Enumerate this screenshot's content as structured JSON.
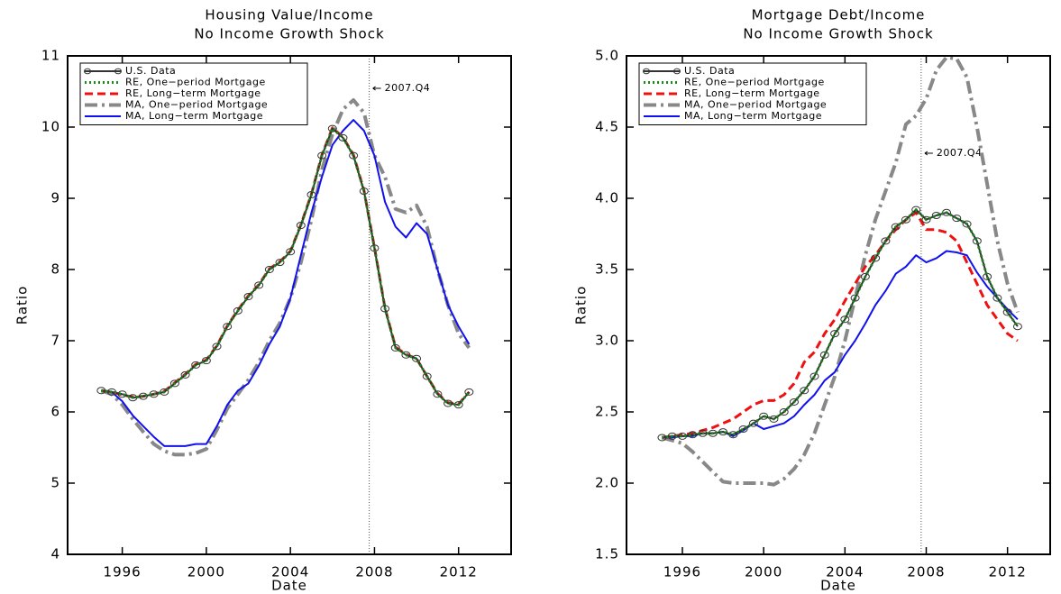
{
  "chart_data": [
    {
      "type": "line",
      "title": "Housing Value/Income",
      "subtitle": "No Income Growth Shock",
      "x_label": "Date",
      "y_label": "Ratio",
      "x": [
        1995,
        1995.5,
        1996,
        1996.5,
        1997,
        1997.5,
        1998,
        1998.5,
        1999,
        1999.5,
        2000,
        2000.5,
        2001,
        2001.5,
        2002,
        2002.5,
        2003,
        2003.5,
        2004,
        2004.5,
        2005,
        2005.5,
        2006,
        2006.5,
        2007,
        2007.5,
        2008,
        2008.5,
        2009,
        2009.5,
        2010,
        2010.5,
        2011,
        2011.5,
        2012,
        2012.5
      ],
      "xlim": [
        1993.4,
        2014.5
      ],
      "xticks": [
        1996,
        2000,
        2004,
        2008,
        2012
      ],
      "ylim": [
        4,
        11
      ],
      "yticks": [
        4,
        5,
        6,
        7,
        8,
        9,
        10,
        11
      ],
      "annotation": {
        "text": "2007.Q4",
        "x": 2007.75
      },
      "series": [
        {
          "name": "U.S. Data",
          "color": "#333333",
          "linestyle": "solid",
          "marker": "circle",
          "values": [
            6.3,
            6.28,
            6.25,
            6.2,
            6.22,
            6.25,
            6.28,
            6.4,
            6.52,
            6.66,
            6.72,
            6.92,
            7.2,
            7.42,
            7.62,
            7.78,
            8.0,
            8.1,
            8.25,
            8.62,
            9.05,
            9.6,
            9.98,
            9.85,
            9.6,
            9.1,
            8.3,
            7.45,
            6.9,
            6.8,
            6.75,
            6.5,
            6.25,
            6.12,
            6.1,
            6.28
          ]
        },
        {
          "name": "RE, One−period Mortgage",
          "color": "#1a8a1a",
          "linestyle": "dotted",
          "values": [
            6.3,
            6.28,
            6.25,
            6.2,
            6.22,
            6.25,
            6.28,
            6.4,
            6.52,
            6.66,
            6.72,
            6.92,
            7.2,
            7.42,
            7.62,
            7.78,
            8.0,
            8.1,
            8.25,
            8.62,
            9.05,
            9.6,
            9.98,
            9.85,
            9.6,
            9.1,
            8.3,
            7.45,
            6.9,
            6.8,
            6.75,
            6.5,
            6.25,
            6.12,
            6.1,
            6.28
          ]
        },
        {
          "name": "RE, Long−term Mortgage",
          "color": "#ee1111",
          "linestyle": "dashed",
          "values": [
            6.3,
            6.28,
            6.24,
            6.21,
            6.22,
            6.25,
            6.29,
            6.41,
            6.53,
            6.67,
            6.73,
            6.93,
            7.21,
            7.43,
            7.63,
            7.79,
            8.01,
            8.11,
            8.26,
            8.63,
            9.06,
            9.61,
            9.99,
            9.86,
            9.61,
            9.11,
            8.31,
            7.46,
            6.91,
            6.81,
            6.75,
            6.5,
            6.26,
            6.13,
            6.11,
            6.28
          ]
        },
        {
          "name": "MA, One−period Mortgage",
          "color": "#888888",
          "linestyle": "dashdot",
          "values": [
            6.3,
            6.25,
            6.1,
            5.9,
            5.72,
            5.55,
            5.45,
            5.4,
            5.4,
            5.42,
            5.48,
            5.75,
            6.05,
            6.25,
            6.45,
            6.7,
            7.0,
            7.25,
            7.6,
            8.1,
            8.7,
            9.4,
            9.9,
            10.25,
            10.38,
            10.2,
            9.6,
            9.3,
            8.85,
            8.8,
            8.9,
            8.6,
            8.0,
            7.5,
            7.1,
            6.9
          ]
        },
        {
          "name": "MA, Long−term Mortgage",
          "color": "#1111ee",
          "linestyle": "solid",
          "values": [
            6.3,
            6.28,
            6.15,
            5.95,
            5.8,
            5.65,
            5.52,
            5.52,
            5.52,
            5.55,
            5.55,
            5.8,
            6.1,
            6.3,
            6.4,
            6.65,
            6.95,
            7.2,
            7.6,
            8.2,
            8.8,
            9.3,
            9.75,
            9.95,
            10.1,
            9.95,
            9.6,
            8.95,
            8.6,
            8.45,
            8.65,
            8.5,
            8.0,
            7.5,
            7.2,
            6.95
          ]
        }
      ]
    },
    {
      "type": "line",
      "title": "Mortgage Debt/Income",
      "subtitle": "No Income Growth Shock",
      "x_label": "Date",
      "y_label": "Ratio",
      "x": [
        1995,
        1995.5,
        1996,
        1996.5,
        1997,
        1997.5,
        1998,
        1998.5,
        1999,
        1999.5,
        2000,
        2000.5,
        2001,
        2001.5,
        2002,
        2002.5,
        2003,
        2003.5,
        2004,
        2004.5,
        2005,
        2005.5,
        2006,
        2006.5,
        2007,
        2007.5,
        2008,
        2008.5,
        2009,
        2009.5,
        2010,
        2010.5,
        2011,
        2011.5,
        2012,
        2012.5
      ],
      "xlim": [
        1993.25,
        2014.1
      ],
      "xticks": [
        1996,
        2000,
        2004,
        2008,
        2012
      ],
      "ylim": [
        1.5,
        5
      ],
      "yticks": [
        {
          "value": 1.5,
          "label": "1.5"
        },
        {
          "value": 2,
          "label": "2.0"
        },
        2.5,
        {
          "value": 3,
          "label": "3.0"
        },
        3.5,
        {
          "value": 4,
          "label": "4.0"
        },
        4.5,
        {
          "value": 5,
          "label": "5.0"
        }
      ],
      "annotation": {
        "text": "2007.Q4",
        "x": 2007.75
      },
      "series": [
        {
          "name": "U.S. Data",
          "color": "#333333",
          "linestyle": "solid",
          "marker": "circle",
          "values": [
            2.32,
            2.33,
            2.33,
            2.34,
            2.35,
            2.35,
            2.36,
            2.34,
            2.38,
            2.42,
            2.47,
            2.45,
            2.5,
            2.57,
            2.65,
            2.75,
            2.9,
            3.05,
            3.15,
            3.3,
            3.45,
            3.58,
            3.7,
            3.8,
            3.85,
            3.92,
            3.85,
            3.88,
            3.9,
            3.86,
            3.82,
            3.7,
            3.45,
            3.3,
            3.2,
            3.1
          ]
        },
        {
          "name": "RE, One−period Mortgage",
          "color": "#1a8a1a",
          "linestyle": "dotted",
          "values": [
            2.32,
            2.33,
            2.33,
            2.34,
            2.35,
            2.35,
            2.36,
            2.34,
            2.38,
            2.42,
            2.47,
            2.45,
            2.5,
            2.57,
            2.65,
            2.75,
            2.9,
            3.05,
            3.15,
            3.3,
            3.45,
            3.58,
            3.7,
            3.8,
            3.85,
            3.92,
            3.85,
            3.88,
            3.9,
            3.86,
            3.82,
            3.7,
            3.45,
            3.3,
            3.2,
            3.1
          ]
        },
        {
          "name": "RE, Long−term Mortgage",
          "color": "#ee1111",
          "linestyle": "dashed",
          "values": [
            2.32,
            2.33,
            2.34,
            2.35,
            2.37,
            2.39,
            2.42,
            2.45,
            2.5,
            2.55,
            2.58,
            2.58,
            2.62,
            2.7,
            2.85,
            2.92,
            3.05,
            3.15,
            3.28,
            3.4,
            3.52,
            3.6,
            3.7,
            3.78,
            3.85,
            3.9,
            3.78,
            3.78,
            3.76,
            3.7,
            3.55,
            3.4,
            3.25,
            3.15,
            3.05,
            3.0
          ]
        },
        {
          "name": "MA, One−period Mortgage",
          "color": "#888888",
          "linestyle": "dashdot",
          "values": [
            2.32,
            2.3,
            2.28,
            2.22,
            2.15,
            2.08,
            2.01,
            2.0,
            2.0,
            2.0,
            2.0,
            1.99,
            2.03,
            2.1,
            2.2,
            2.35,
            2.55,
            2.75,
            3.0,
            3.3,
            3.6,
            3.85,
            4.05,
            4.25,
            4.52,
            4.58,
            4.7,
            4.9,
            4.99,
            4.98,
            4.85,
            4.5,
            4.1,
            3.7,
            3.4,
            3.2
          ]
        },
        {
          "name": "MA, Long−term Mortgage",
          "color": "#1111ee",
          "linestyle": "solid",
          "values": [
            2.32,
            2.32,
            2.33,
            2.33,
            2.35,
            2.35,
            2.36,
            2.33,
            2.37,
            2.42,
            2.38,
            2.4,
            2.42,
            2.47,
            2.55,
            2.62,
            2.72,
            2.78,
            2.9,
            3.0,
            3.12,
            3.25,
            3.35,
            3.47,
            3.52,
            3.6,
            3.55,
            3.58,
            3.63,
            3.62,
            3.6,
            3.48,
            3.38,
            3.3,
            3.22,
            3.15
          ]
        }
      ]
    }
  ]
}
